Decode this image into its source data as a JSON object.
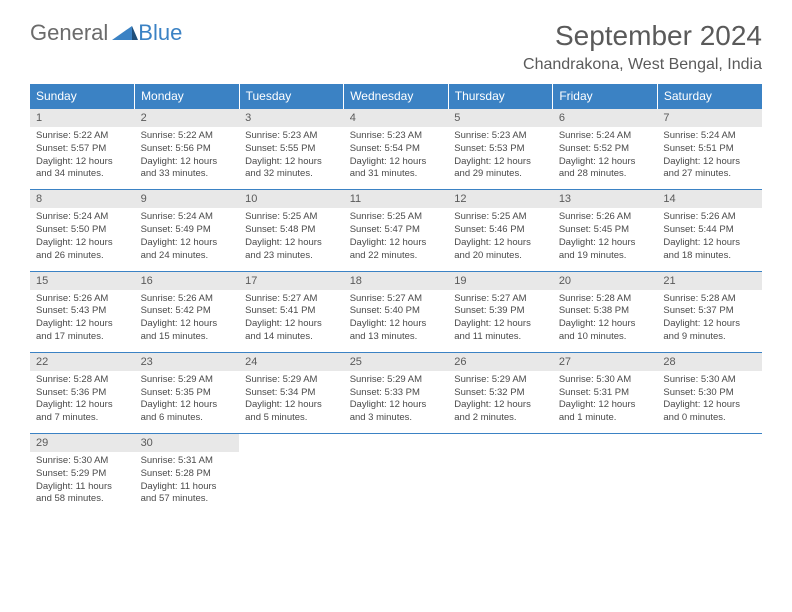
{
  "logo": {
    "word1": "General",
    "word2": "Blue"
  },
  "title": "September 2024",
  "location": "Chandrakona, West Bengal, India",
  "colors": {
    "header_bg": "#3b82c4",
    "header_text": "#ffffff",
    "daynum_bg": "#e8e8e8",
    "text": "#4a4a4a",
    "border": "#3b82c4"
  },
  "weekdays": [
    "Sunday",
    "Monday",
    "Tuesday",
    "Wednesday",
    "Thursday",
    "Friday",
    "Saturday"
  ],
  "days": [
    {
      "n": "1",
      "sunrise": "5:22 AM",
      "sunset": "5:57 PM",
      "daylight": "12 hours and 34 minutes."
    },
    {
      "n": "2",
      "sunrise": "5:22 AM",
      "sunset": "5:56 PM",
      "daylight": "12 hours and 33 minutes."
    },
    {
      "n": "3",
      "sunrise": "5:23 AM",
      "sunset": "5:55 PM",
      "daylight": "12 hours and 32 minutes."
    },
    {
      "n": "4",
      "sunrise": "5:23 AM",
      "sunset": "5:54 PM",
      "daylight": "12 hours and 31 minutes."
    },
    {
      "n": "5",
      "sunrise": "5:23 AM",
      "sunset": "5:53 PM",
      "daylight": "12 hours and 29 minutes."
    },
    {
      "n": "6",
      "sunrise": "5:24 AM",
      "sunset": "5:52 PM",
      "daylight": "12 hours and 28 minutes."
    },
    {
      "n": "7",
      "sunrise": "5:24 AM",
      "sunset": "5:51 PM",
      "daylight": "12 hours and 27 minutes."
    },
    {
      "n": "8",
      "sunrise": "5:24 AM",
      "sunset": "5:50 PM",
      "daylight": "12 hours and 26 minutes."
    },
    {
      "n": "9",
      "sunrise": "5:24 AM",
      "sunset": "5:49 PM",
      "daylight": "12 hours and 24 minutes."
    },
    {
      "n": "10",
      "sunrise": "5:25 AM",
      "sunset": "5:48 PM",
      "daylight": "12 hours and 23 minutes."
    },
    {
      "n": "11",
      "sunrise": "5:25 AM",
      "sunset": "5:47 PM",
      "daylight": "12 hours and 22 minutes."
    },
    {
      "n": "12",
      "sunrise": "5:25 AM",
      "sunset": "5:46 PM",
      "daylight": "12 hours and 20 minutes."
    },
    {
      "n": "13",
      "sunrise": "5:26 AM",
      "sunset": "5:45 PM",
      "daylight": "12 hours and 19 minutes."
    },
    {
      "n": "14",
      "sunrise": "5:26 AM",
      "sunset": "5:44 PM",
      "daylight": "12 hours and 18 minutes."
    },
    {
      "n": "15",
      "sunrise": "5:26 AM",
      "sunset": "5:43 PM",
      "daylight": "12 hours and 17 minutes."
    },
    {
      "n": "16",
      "sunrise": "5:26 AM",
      "sunset": "5:42 PM",
      "daylight": "12 hours and 15 minutes."
    },
    {
      "n": "17",
      "sunrise": "5:27 AM",
      "sunset": "5:41 PM",
      "daylight": "12 hours and 14 minutes."
    },
    {
      "n": "18",
      "sunrise": "5:27 AM",
      "sunset": "5:40 PM",
      "daylight": "12 hours and 13 minutes."
    },
    {
      "n": "19",
      "sunrise": "5:27 AM",
      "sunset": "5:39 PM",
      "daylight": "12 hours and 11 minutes."
    },
    {
      "n": "20",
      "sunrise": "5:28 AM",
      "sunset": "5:38 PM",
      "daylight": "12 hours and 10 minutes."
    },
    {
      "n": "21",
      "sunrise": "5:28 AM",
      "sunset": "5:37 PM",
      "daylight": "12 hours and 9 minutes."
    },
    {
      "n": "22",
      "sunrise": "5:28 AM",
      "sunset": "5:36 PM",
      "daylight": "12 hours and 7 minutes."
    },
    {
      "n": "23",
      "sunrise": "5:29 AM",
      "sunset": "5:35 PM",
      "daylight": "12 hours and 6 minutes."
    },
    {
      "n": "24",
      "sunrise": "5:29 AM",
      "sunset": "5:34 PM",
      "daylight": "12 hours and 5 minutes."
    },
    {
      "n": "25",
      "sunrise": "5:29 AM",
      "sunset": "5:33 PM",
      "daylight": "12 hours and 3 minutes."
    },
    {
      "n": "26",
      "sunrise": "5:29 AM",
      "sunset": "5:32 PM",
      "daylight": "12 hours and 2 minutes."
    },
    {
      "n": "27",
      "sunrise": "5:30 AM",
      "sunset": "5:31 PM",
      "daylight": "12 hours and 1 minute."
    },
    {
      "n": "28",
      "sunrise": "5:30 AM",
      "sunset": "5:30 PM",
      "daylight": "12 hours and 0 minutes."
    },
    {
      "n": "29",
      "sunrise": "5:30 AM",
      "sunset": "5:29 PM",
      "daylight": "11 hours and 58 minutes."
    },
    {
      "n": "30",
      "sunrise": "5:31 AM",
      "sunset": "5:28 PM",
      "daylight": "11 hours and 57 minutes."
    }
  ],
  "labels": {
    "sunrise": "Sunrise:",
    "sunset": "Sunset:",
    "daylight": "Daylight:"
  },
  "layout": {
    "start_weekday": 0,
    "cols": 7
  }
}
